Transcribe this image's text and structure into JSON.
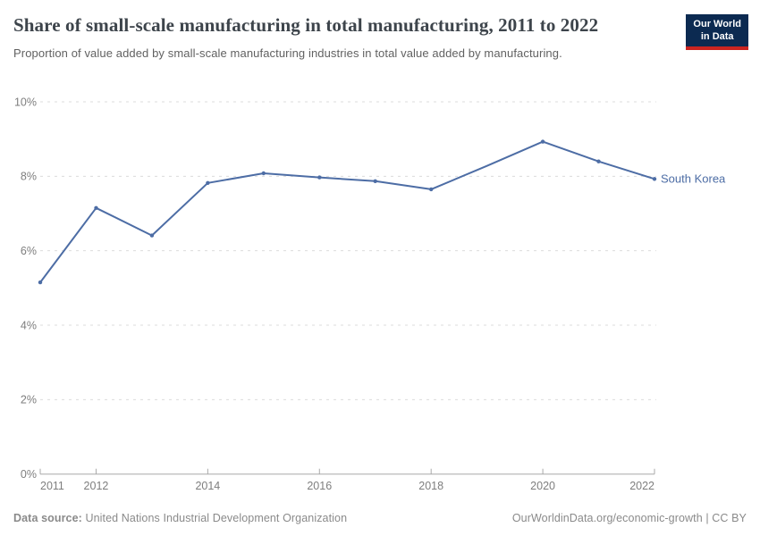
{
  "header": {
    "title": "Share of small-scale manufacturing in total manufacturing, 2011 to 2022",
    "subtitle": "Proportion of value added by small-scale manufacturing industries in total value added by manufacturing.",
    "logo": {
      "line1": "Our World",
      "line2": "in Data"
    }
  },
  "chart_data": {
    "type": "line",
    "title": "Share of small-scale manufacturing in total manufacturing, 2011 to 2022",
    "xlabel": "",
    "ylabel": "",
    "xlim": [
      2011,
      2022
    ],
    "ylim": [
      0,
      10
    ],
    "grid": "horizontal-dashed",
    "legend_position": "end-of-line-label",
    "x_ticks": [
      2011,
      2012,
      2014,
      2016,
      2018,
      2020,
      2022
    ],
    "y_ticks": [
      0,
      2,
      4,
      6,
      8,
      10
    ],
    "y_tick_suffix": "%",
    "series": [
      {
        "name": "South Korea",
        "color": "#4d6da5",
        "points": [
          {
            "year": 2011,
            "value": 5.15
          },
          {
            "year": 2012,
            "value": 7.15
          },
          {
            "year": 2013,
            "value": 6.41
          },
          {
            "year": 2014,
            "value": 7.82
          },
          {
            "year": 2015,
            "value": 8.08
          },
          {
            "year": 2016,
            "value": 7.97
          },
          {
            "year": 2017,
            "value": 7.87
          },
          {
            "year": 2018,
            "value": 7.65
          },
          {
            "year": 2019,
            "value": 8.28,
            "marker": false
          },
          {
            "year": 2020,
            "value": 8.93
          },
          {
            "year": 2021,
            "value": 8.4
          },
          {
            "year": 2022,
            "value": 7.93
          }
        ]
      }
    ]
  },
  "footer": {
    "source_label": "Data source:",
    "source_text": "United Nations Industrial Development Organization",
    "link_text": "OurWorldinData.org/economic-growth | CC BY"
  },
  "colors": {
    "line": "#4d6da5",
    "gridline": "#dcdcdc",
    "axis": "#a9a9a9",
    "tick_label": "#7e7e7e",
    "logo_bg": "#0c2a51",
    "logo_stripe": "#cb2420"
  }
}
